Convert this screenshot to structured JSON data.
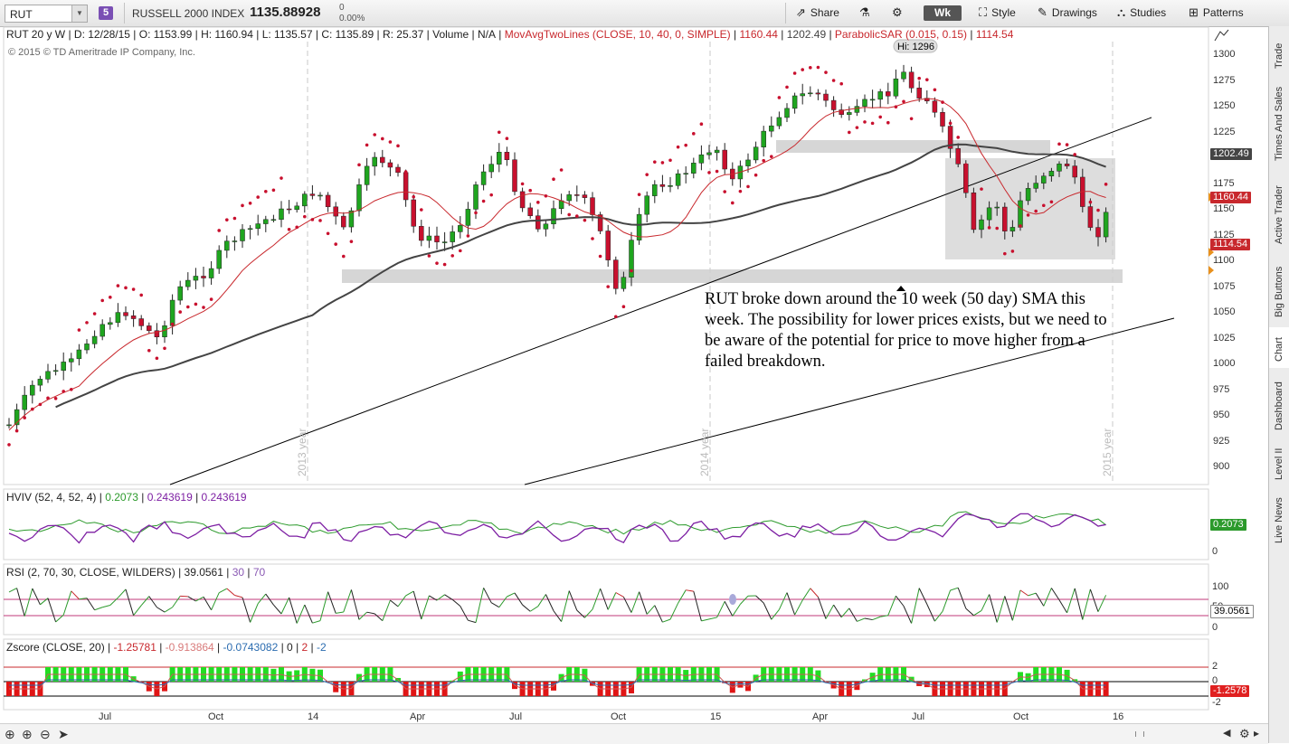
{
  "toolbar": {
    "symbol": "RUT",
    "badge": "5",
    "name": "RUSSELL 2000 INDEX",
    "price": "1135.88928",
    "change": "0",
    "change_pct": "0.00%",
    "share": "Share",
    "timeframe": "Wk",
    "style": "Style",
    "drawings": "Drawings",
    "studies": "Studies",
    "patterns": "Patterns"
  },
  "header": {
    "symbol_period": "RUT 20 y W",
    "date": "D: 12/28/15",
    "open": "O: 1153.99",
    "high": "H: 1160.94",
    "low": "L: 1135.57",
    "close": "C: 1135.89",
    "range": "R: 25.37",
    "volume": "Volume",
    "volume_val": "N/A",
    "mav_study": "MovAvgTwoLines (CLOSE, 10, 40, 0, SIMPLE)",
    "mav_val1": "1160.44",
    "mav_val2": "1202.49",
    "sar_study": "ParabolicSAR (0.015, 0.15)",
    "sar_val": "1114.54"
  },
  "copyright": "© 2015 © TD Ameritrade IP Company, Inc.",
  "high_label": "Hi: 1296",
  "annotation": "RUT broke down around the 10 week (50 day) SMA this week.  The possibility for lower prices exists, but we need to be aware of the potential for price to move higher from a failed breakdown.",
  "year_marks": [
    "2013 year",
    "2014 year",
    "2015 year"
  ],
  "price_axis": [
    "1300",
    "1275",
    "1250",
    "1225",
    "1200",
    "1175",
    "1150",
    "1125",
    "1100",
    "1075",
    "1050",
    "1025",
    "1000",
    "975",
    "950",
    "925",
    "900"
  ],
  "price_tags": {
    "sma40": "1202.49",
    "sma10": "1160.44",
    "sar": "1114.54"
  },
  "x_axis": [
    "Jul",
    "Oct",
    "14",
    "Apr",
    "Jul",
    "Oct",
    "15",
    "Apr",
    "Jul",
    "Oct",
    "16"
  ],
  "hviv": {
    "label": "HVIV (52, 4, 52, 4)",
    "v1": "0.2073",
    "v2": "0.243619",
    "v3": "0.243619",
    "tag": "0.2073",
    "axis0": "0"
  },
  "rsi": {
    "label": "RSI (2, 70, 30, CLOSE, WILDERS)",
    "v": "39.0561",
    "lo": "30",
    "hi": "70",
    "tag": "39.0561",
    "axis": [
      "100",
      "50",
      "0"
    ]
  },
  "zscore": {
    "label": "Zscore (CLOSE, 20)",
    "v1": "-1.25781",
    "v2": "-0.913864",
    "v3": "-0.0743082",
    "a": "0",
    "b": "2",
    "c": "-2",
    "tag": "-1.2578",
    "axis": [
      "2",
      "0",
      "-2"
    ]
  },
  "sidebar": [
    "Trade",
    "Times And Sales",
    "Active Trader",
    "Big Buttons",
    "Chart",
    "Dashboard",
    "Level II",
    "Live News"
  ],
  "colors": {
    "up": "#1fa51f",
    "down": "#c8102e",
    "sma10": "#c8282d",
    "sma40": "#444444",
    "sar": "#c8102e"
  }
}
